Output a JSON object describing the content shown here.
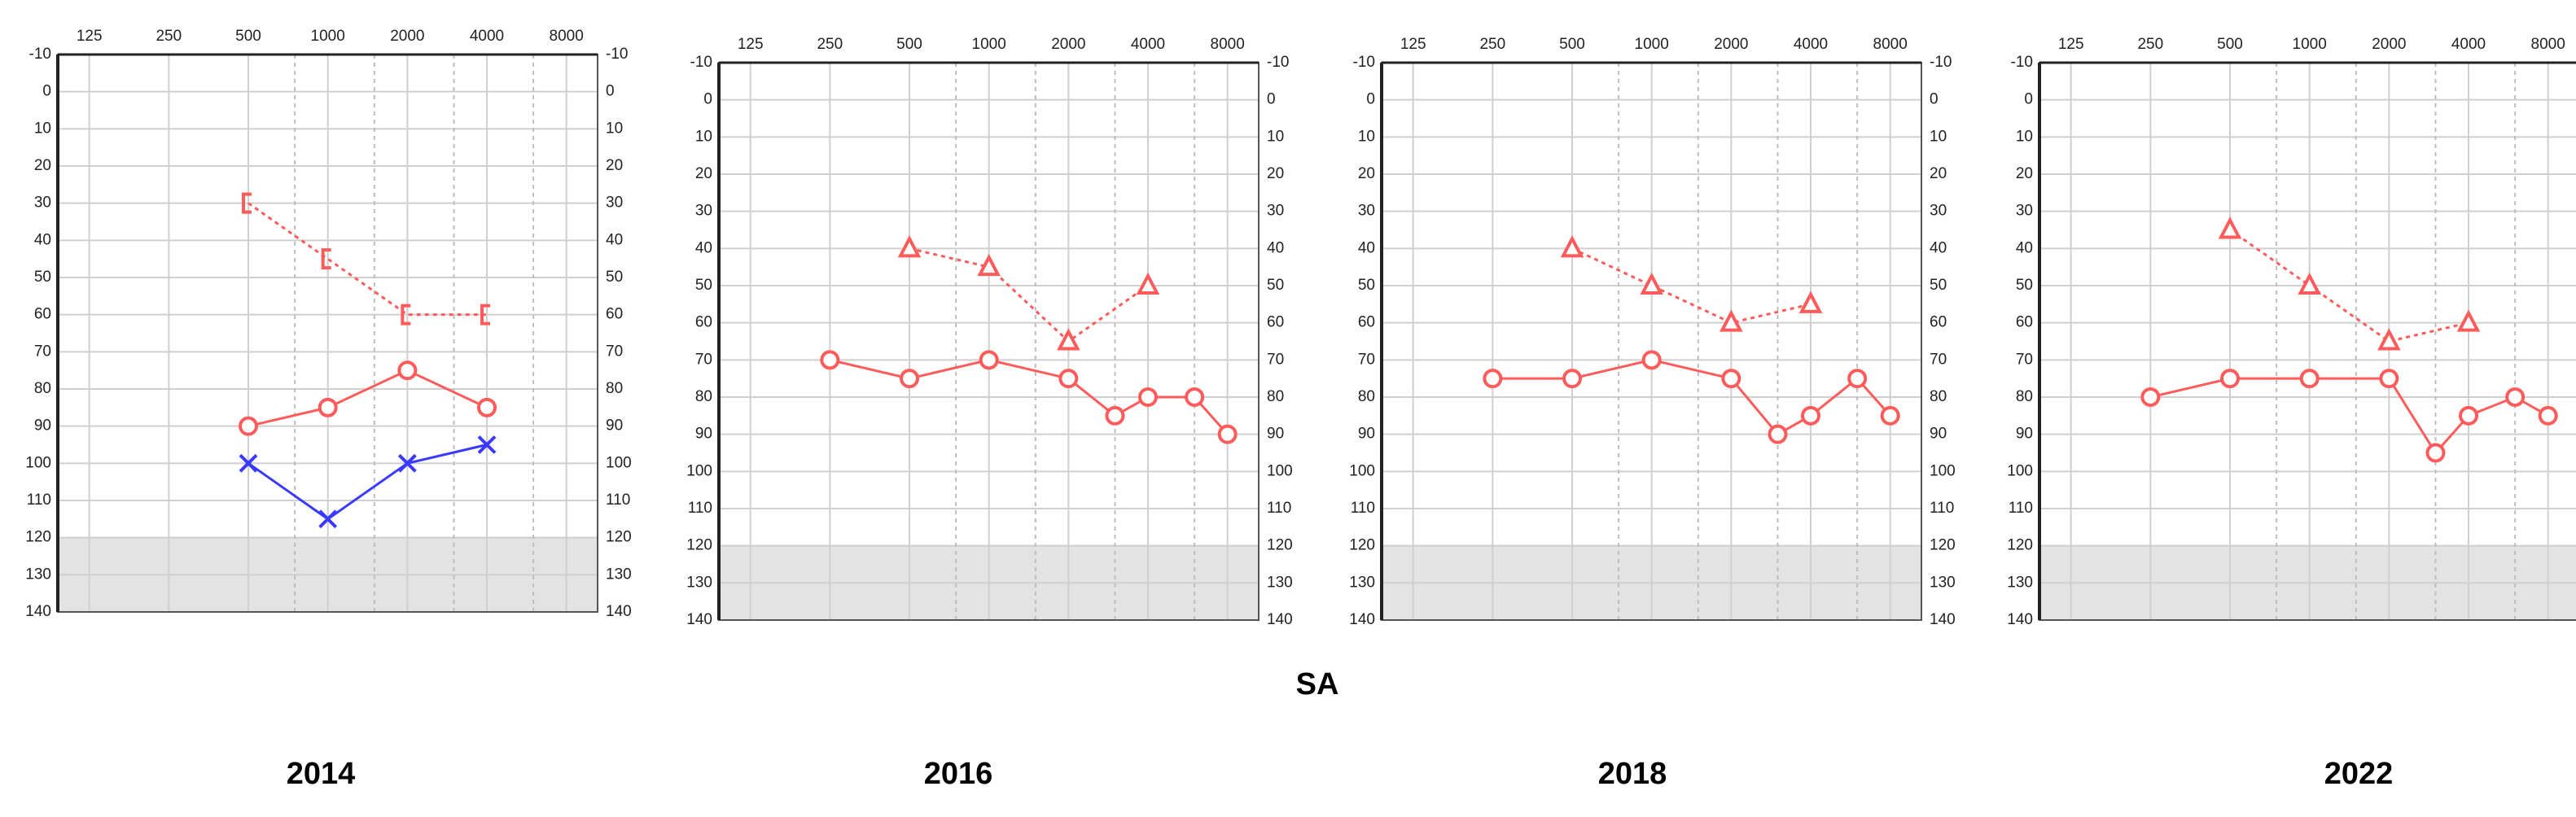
{
  "label": "SA",
  "chart_data": [
    {
      "type": "line",
      "title": "2014",
      "xscale": "log",
      "yinvert": true,
      "xlim": [
        95,
        10500
      ],
      "xticks": [
        125,
        250,
        500,
        1000,
        2000,
        4000,
        8000
      ],
      "xminor": [
        750,
        1500,
        3000,
        6000
      ],
      "ylim": [
        -10,
        140
      ],
      "yticks": [
        -10,
        0,
        10,
        20,
        30,
        40,
        50,
        60,
        70,
        80,
        90,
        100,
        110,
        120,
        130,
        140
      ],
      "grid": true,
      "shade": [
        120,
        140
      ],
      "series": [
        {
          "color": "#ff5b5b",
          "marker": "bracket",
          "dash": true,
          "x": [
            500,
            1000,
            2000,
            4000
          ],
          "values": [
            30,
            45,
            60,
            60
          ]
        },
        {
          "color": "#ff5b5b",
          "marker": "circle",
          "dash": false,
          "x": [
            500,
            1000,
            2000,
            4000
          ],
          "values": [
            90,
            85,
            75,
            85
          ]
        },
        {
          "color": "#3a3aff",
          "marker": "x",
          "dash": false,
          "x": [
            500,
            1000,
            2000,
            4000
          ],
          "values": [
            100,
            115,
            100,
            95
          ]
        }
      ]
    },
    {
      "type": "line",
      "title": "2016",
      "xscale": "log",
      "yinvert": true,
      "xlim": [
        95,
        10500
      ],
      "xticks": [
        125,
        250,
        500,
        1000,
        2000,
        4000,
        8000
      ],
      "xminor": [
        750,
        1500,
        3000,
        6000
      ],
      "ylim": [
        -10,
        140
      ],
      "yticks": [
        -10,
        0,
        10,
        20,
        30,
        40,
        50,
        60,
        70,
        80,
        90,
        100,
        110,
        120,
        130,
        140
      ],
      "grid": true,
      "shade": [
        120,
        140
      ],
      "series": [
        {
          "color": "#ff5b5b",
          "marker": "triangle",
          "dash": true,
          "x": [
            500,
            1000,
            2000,
            4000
          ],
          "values": [
            40,
            45,
            65,
            50
          ]
        },
        {
          "color": "#ff5b5b",
          "marker": "circle",
          "dash": false,
          "x": [
            250,
            500,
            1000,
            2000,
            3000,
            4000,
            6000,
            8000
          ],
          "values": [
            70,
            75,
            70,
            75,
            85,
            80,
            80,
            90
          ]
        }
      ]
    },
    {
      "type": "line",
      "title": "2018",
      "xscale": "log",
      "yinvert": true,
      "xlim": [
        95,
        10500
      ],
      "xticks": [
        125,
        250,
        500,
        1000,
        2000,
        4000,
        8000
      ],
      "xminor": [
        750,
        1500,
        3000,
        6000
      ],
      "ylim": [
        -10,
        140
      ],
      "yticks": [
        -10,
        0,
        10,
        20,
        30,
        40,
        50,
        60,
        70,
        80,
        90,
        100,
        110,
        120,
        130,
        140
      ],
      "grid": true,
      "shade": [
        120,
        140
      ],
      "series": [
        {
          "color": "#ff5b5b",
          "marker": "triangle",
          "dash": true,
          "x": [
            500,
            1000,
            2000,
            4000
          ],
          "values": [
            40,
            50,
            60,
            55
          ]
        },
        {
          "color": "#ff5b5b",
          "marker": "circle",
          "dash": false,
          "x": [
            250,
            500,
            1000,
            2000,
            3000,
            4000,
            6000,
            8000
          ],
          "values": [
            75,
            75,
            70,
            75,
            90,
            85,
            75,
            85
          ]
        }
      ]
    },
    {
      "type": "line",
      "title": "2022",
      "xscale": "log",
      "yinvert": true,
      "xlim": [
        95,
        10500
      ],
      "xticks": [
        125,
        250,
        500,
        1000,
        2000,
        4000,
        8000
      ],
      "xminor": [
        750,
        1500,
        3000,
        6000
      ],
      "ylim": [
        -10,
        140
      ],
      "yticks": [
        -10,
        0,
        10,
        20,
        30,
        40,
        50,
        60,
        70,
        80,
        90,
        100,
        110,
        120,
        130,
        140
      ],
      "grid": true,
      "shade": [
        120,
        140
      ],
      "series": [
        {
          "color": "#ff5b5b",
          "marker": "triangle",
          "dash": true,
          "x": [
            500,
            1000,
            2000,
            4000
          ],
          "values": [
            35,
            50,
            65,
            60
          ]
        },
        {
          "color": "#ff5b5b",
          "marker": "circle",
          "dash": false,
          "x": [
            250,
            500,
            1000,
            2000,
            3000,
            4000,
            6000,
            8000
          ],
          "values": [
            80,
            75,
            75,
            75,
            95,
            85,
            80,
            85
          ]
        }
      ]
    }
  ]
}
